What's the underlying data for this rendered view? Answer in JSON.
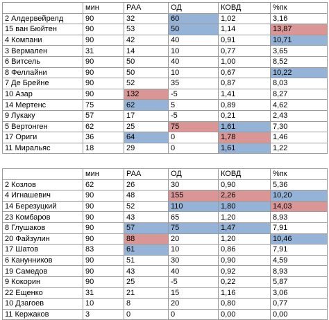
{
  "colors": {
    "blue": "#95b3d7",
    "red": "#da9694"
  },
  "headers": [
    "",
    "мин",
    "РАА",
    "ОД",
    "КОВД",
    "%пк"
  ],
  "table1": [
    {
      "cells": [
        "2 Алдервейрелд",
        "90",
        "32",
        "60",
        "1,02",
        "3,16"
      ],
      "hl": [
        "",
        "",
        "",
        "b",
        "",
        ""
      ]
    },
    {
      "cells": [
        "15 ван Бюйтен",
        "90",
        "53",
        "50",
        "1,14",
        "13,87"
      ],
      "hl": [
        "",
        "",
        "",
        "b",
        "",
        "r"
      ]
    },
    {
      "cells": [
        "4 Компани",
        "90",
        "42",
        "40",
        "0,91",
        "10,71"
      ],
      "hl": [
        "",
        "",
        "",
        "",
        "",
        "b"
      ]
    },
    {
      "cells": [
        "3 Вермален",
        "31",
        "14",
        "10",
        "0,77",
        "3,65"
      ],
      "hl": [
        "",
        "",
        "",
        "",
        "",
        ""
      ]
    },
    {
      "cells": [
        "6 Витсель",
        "90",
        "50",
        "40",
        "1,00",
        "8,52"
      ],
      "hl": [
        "",
        "",
        "",
        "",
        "",
        ""
      ]
    },
    {
      "cells": [
        "8 Феллайни",
        "90",
        "50",
        "10",
        "0,67",
        "10,22"
      ],
      "hl": [
        "",
        "",
        "",
        "",
        "",
        "b"
      ]
    },
    {
      "cells": [
        "7 Де Брейне",
        "90",
        "52",
        "35",
        "0,87",
        "8,03"
      ],
      "hl": [
        "",
        "",
        "",
        "",
        "",
        ""
      ]
    },
    {
      "cells": [
        "10 Азар",
        "90",
        "132",
        "-5",
        "1,41",
        "8,27"
      ],
      "hl": [
        "",
        "",
        "r",
        "",
        "",
        ""
      ]
    },
    {
      "cells": [
        "14 Мертенс",
        "75",
        "62",
        "5",
        "0,89",
        "4,62"
      ],
      "hl": [
        "",
        "",
        "b",
        "",
        "",
        ""
      ]
    },
    {
      "cells": [
        "9 Лукаку",
        "57",
        "17",
        "-5",
        "0,21",
        "2,43"
      ],
      "hl": [
        "",
        "",
        "",
        "",
        "",
        ""
      ]
    },
    {
      "cells": [
        "5 Вертонген",
        "62",
        "25",
        "75",
        "1,61",
        "7,30"
      ],
      "hl": [
        "",
        "",
        "",
        "r",
        "b",
        ""
      ]
    },
    {
      "cells": [
        "17 Ориги",
        "36",
        "64",
        "0",
        "1,78",
        "1,46"
      ],
      "hl": [
        "",
        "",
        "b",
        "",
        "r",
        ""
      ]
    },
    {
      "cells": [
        "11 Миральяс",
        "18",
        "29",
        "0",
        "1,61",
        "1,22"
      ],
      "hl": [
        "",
        "",
        "",
        "",
        "b",
        ""
      ]
    }
  ],
  "table2": [
    {
      "cells": [
        "2 Козлов",
        "62",
        "26",
        "30",
        "0,90",
        "5,36"
      ],
      "hl": [
        "",
        "",
        "",
        "",
        "",
        ""
      ]
    },
    {
      "cells": [
        "4 Игнашевич",
        "90",
        "48",
        "155",
        "2,26",
        "10,20"
      ],
      "hl": [
        "",
        "",
        "",
        "r",
        "r",
        "b"
      ]
    },
    {
      "cells": [
        "14 Березуцкий",
        "90",
        "52",
        "110",
        "1,80",
        "14,03"
      ],
      "hl": [
        "",
        "",
        "",
        "b",
        "b",
        "r"
      ]
    },
    {
      "cells": [
        "23 Комбаров",
        "90",
        "43",
        "65",
        "1,20",
        "8,93"
      ],
      "hl": [
        "",
        "",
        "",
        "",
        "",
        ""
      ]
    },
    {
      "cells": [
        "8 Глушаков",
        "90",
        "57",
        "75",
        "1,47",
        "7,91"
      ],
      "hl": [
        "",
        "",
        "b",
        "b",
        "b",
        ""
      ]
    },
    {
      "cells": [
        "20 Файзулин",
        "90",
        "88",
        "20",
        "1,20",
        "10,46"
      ],
      "hl": [
        "",
        "",
        "r",
        "",
        "",
        "b"
      ]
    },
    {
      "cells": [
        "17 Шатов",
        "83",
        "61",
        "10",
        "0,86",
        "7,91"
      ],
      "hl": [
        "",
        "",
        "b",
        "",
        "",
        ""
      ]
    },
    {
      "cells": [
        "6 Канунников",
        "90",
        "51",
        "30",
        "0,90",
        "4,59"
      ],
      "hl": [
        "",
        "",
        "",
        "",
        "",
        ""
      ]
    },
    {
      "cells": [
        "19 Самедов",
        "90",
        "43",
        "40",
        "0,92",
        "8,93"
      ],
      "hl": [
        "",
        "",
        "",
        "",
        "",
        ""
      ]
    },
    {
      "cells": [
        "9 Кокорин",
        "90",
        "25",
        "-5",
        "0,22",
        "5,87"
      ],
      "hl": [
        "",
        "",
        "",
        "",
        "",
        ""
      ]
    },
    {
      "cells": [
        "22 Ещенко",
        "31",
        "21",
        "15",
        "1,16",
        "3,06"
      ],
      "hl": [
        "",
        "",
        "",
        "",
        "",
        ""
      ]
    },
    {
      "cells": [
        "10 Дзагоев",
        "10",
        "8",
        "20",
        "0,80",
        "0,77"
      ],
      "hl": [
        "",
        "",
        "",
        "",
        "",
        ""
      ]
    },
    {
      "cells": [
        "11 Кержаков",
        "3",
        "0",
        "0",
        "0,00",
        "0,00"
      ],
      "hl": [
        "",
        "",
        "",
        "",
        "",
        ""
      ]
    }
  ]
}
